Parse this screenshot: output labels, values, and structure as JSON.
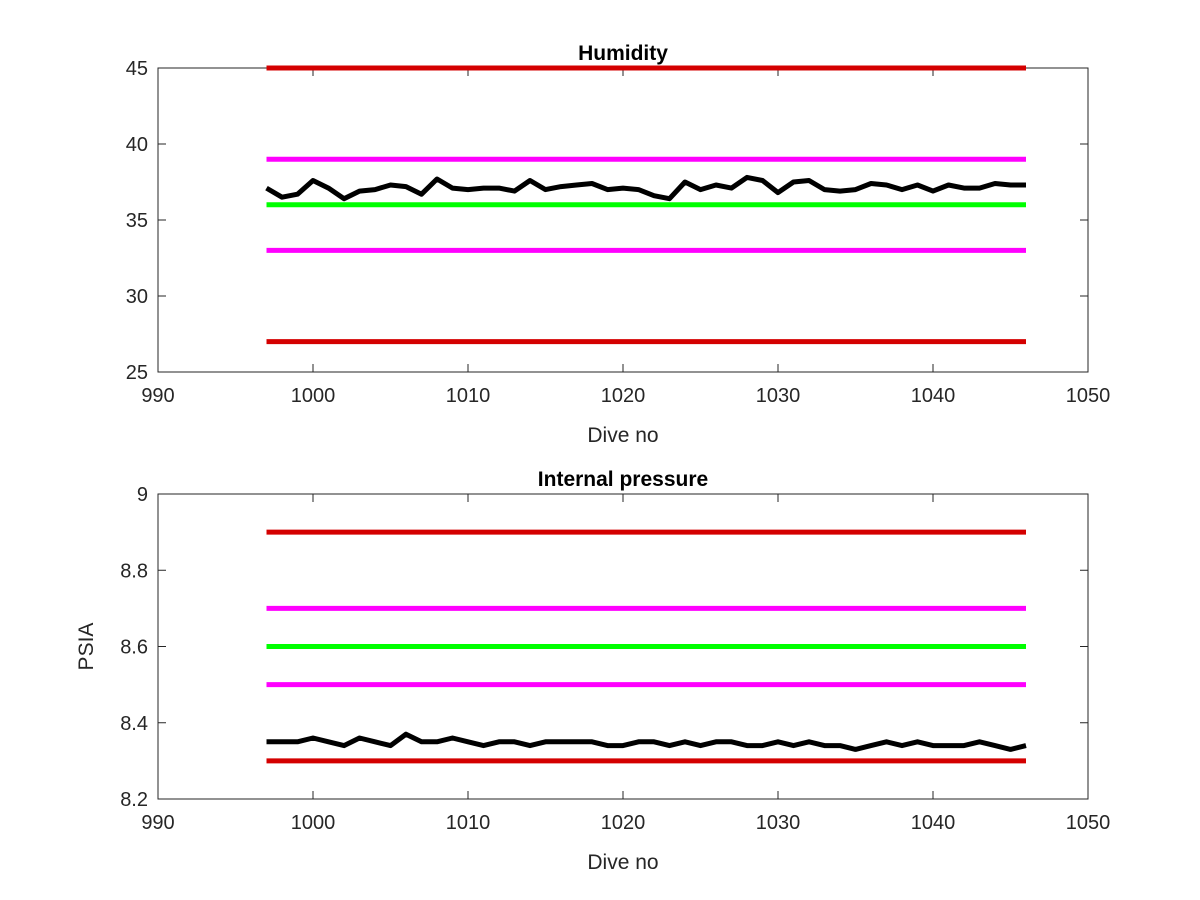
{
  "chart_data": [
    {
      "type": "line",
      "title": "Humidity",
      "xlabel": "Dive no",
      "ylabel": "",
      "xlim": [
        990,
        1050
      ],
      "ylim": [
        25,
        45
      ],
      "xticks": [
        990,
        1000,
        1010,
        1020,
        1030,
        1040,
        1050
      ],
      "xtick_labels": [
        "990",
        "1000",
        "1010",
        "1020",
        "1030",
        "1040",
        "1050"
      ],
      "yticks": [
        25,
        30,
        35,
        40,
        45
      ],
      "ytick_labels": [
        "25",
        "30",
        "35",
        "40",
        "45"
      ],
      "grid": false,
      "legend": "none",
      "series": [
        {
          "color": "#d40000",
          "x": [
            997,
            1046
          ],
          "y": [
            45,
            45
          ]
        },
        {
          "color": "#ff00ff",
          "x": [
            997,
            1046
          ],
          "y": [
            39,
            39
          ]
        },
        {
          "color": "#00ff00",
          "x": [
            997,
            1046
          ],
          "y": [
            36,
            36
          ]
        },
        {
          "color": "#ff00ff",
          "x": [
            997,
            1046
          ],
          "y": [
            33,
            33
          ]
        },
        {
          "color": "#d40000",
          "x": [
            997,
            1046
          ],
          "y": [
            27,
            27
          ]
        },
        {
          "color": "#000000",
          "x": [
            997,
            998,
            999,
            1000,
            1001,
            1002,
            1003,
            1004,
            1005,
            1006,
            1007,
            1008,
            1009,
            1010,
            1011,
            1012,
            1013,
            1014,
            1015,
            1016,
            1017,
            1018,
            1019,
            1020,
            1021,
            1022,
            1023,
            1024,
            1025,
            1026,
            1027,
            1028,
            1029,
            1030,
            1031,
            1032,
            1033,
            1034,
            1035,
            1036,
            1037,
            1038,
            1039,
            1040,
            1041,
            1042,
            1043,
            1044,
            1045,
            1046
          ],
          "y": [
            37.1,
            36.5,
            36.7,
            37.6,
            37.1,
            36.4,
            36.9,
            37.0,
            37.3,
            37.2,
            36.7,
            37.7,
            37.1,
            37.0,
            37.1,
            37.1,
            36.9,
            37.6,
            37.0,
            37.2,
            37.3,
            37.4,
            37.0,
            37.1,
            37.0,
            36.6,
            36.4,
            37.5,
            37.0,
            37.3,
            37.1,
            37.8,
            37.6,
            36.8,
            37.5,
            37.6,
            37.0,
            36.9,
            37.0,
            37.4,
            37.3,
            37.0,
            37.3,
            36.9,
            37.3,
            37.1,
            37.1,
            37.4,
            37.3,
            37.3
          ]
        }
      ]
    },
    {
      "type": "line",
      "title": "Internal pressure",
      "xlabel": "Dive no",
      "ylabel": "PSIA",
      "xlim": [
        990,
        1050
      ],
      "ylim": [
        8.2,
        9
      ],
      "xticks": [
        990,
        1000,
        1010,
        1020,
        1030,
        1040,
        1050
      ],
      "xtick_labels": [
        "990",
        "1000",
        "1010",
        "1020",
        "1030",
        "1040",
        "1050"
      ],
      "yticks": [
        8.2,
        8.4,
        8.6,
        8.8,
        9
      ],
      "ytick_labels": [
        "8.2",
        "8.4",
        "8.6",
        "8.8",
        "9"
      ],
      "grid": false,
      "legend": "none",
      "series": [
        {
          "color": "#d40000",
          "x": [
            997,
            1046
          ],
          "y": [
            8.9,
            8.9
          ]
        },
        {
          "color": "#ff00ff",
          "x": [
            997,
            1046
          ],
          "y": [
            8.7,
            8.7
          ]
        },
        {
          "color": "#00ff00",
          "x": [
            997,
            1046
          ],
          "y": [
            8.6,
            8.6
          ]
        },
        {
          "color": "#ff00ff",
          "x": [
            997,
            1046
          ],
          "y": [
            8.5,
            8.5
          ]
        },
        {
          "color": "#d40000",
          "x": [
            997,
            1046
          ],
          "y": [
            8.3,
            8.3
          ]
        },
        {
          "color": "#000000",
          "x": [
            997,
            998,
            999,
            1000,
            1001,
            1002,
            1003,
            1004,
            1005,
            1006,
            1007,
            1008,
            1009,
            1010,
            1011,
            1012,
            1013,
            1014,
            1015,
            1016,
            1017,
            1018,
            1019,
            1020,
            1021,
            1022,
            1023,
            1024,
            1025,
            1026,
            1027,
            1028,
            1029,
            1030,
            1031,
            1032,
            1033,
            1034,
            1035,
            1036,
            1037,
            1038,
            1039,
            1040,
            1041,
            1042,
            1043,
            1044,
            1045,
            1046
          ],
          "y": [
            8.35,
            8.35,
            8.35,
            8.36,
            8.35,
            8.34,
            8.36,
            8.35,
            8.34,
            8.37,
            8.35,
            8.35,
            8.36,
            8.35,
            8.34,
            8.35,
            8.35,
            8.34,
            8.35,
            8.35,
            8.35,
            8.35,
            8.34,
            8.34,
            8.35,
            8.35,
            8.34,
            8.35,
            8.34,
            8.35,
            8.35,
            8.34,
            8.34,
            8.35,
            8.34,
            8.35,
            8.34,
            8.34,
            8.33,
            8.34,
            8.35,
            8.34,
            8.35,
            8.34,
            8.34,
            8.34,
            8.35,
            8.34,
            8.33,
            8.34
          ]
        }
      ]
    }
  ]
}
